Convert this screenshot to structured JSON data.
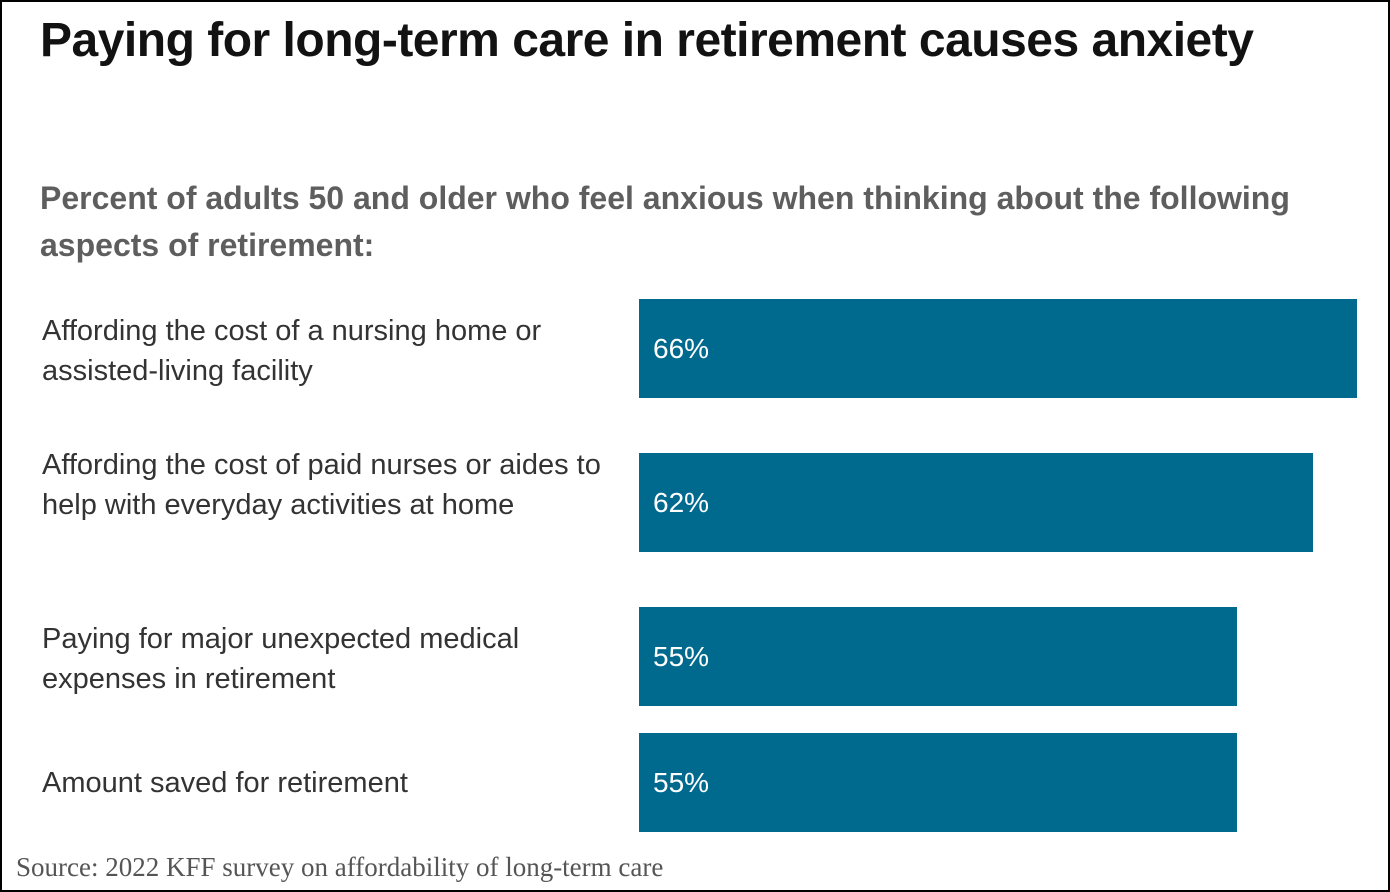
{
  "chart_data": {
    "type": "bar",
    "orientation": "horizontal",
    "title": "Paying for long-term care in retirement causes anxiety",
    "subtitle": "Percent of adults 50 and older who feel anxious when thinking about the following aspects of retirement:",
    "categories": [
      "Affording the cost of a nursing home or assisted-living facility",
      "Affording the cost of paid nurses or aides to help with everyday activities at home",
      "Paying for major unexpected medical expenses in retirement",
      "Amount saved for retirement"
    ],
    "values": [
      66,
      62,
      55,
      55
    ],
    "data_labels": [
      "66%",
      "62%",
      "55%",
      "55%"
    ],
    "unit": "%",
    "xlim": [
      0,
      66
    ],
    "grid": false,
    "legend": "none",
    "bar_color": "#006a8e",
    "source": "Source: 2022 KFF survey on affordability of long-term care"
  }
}
